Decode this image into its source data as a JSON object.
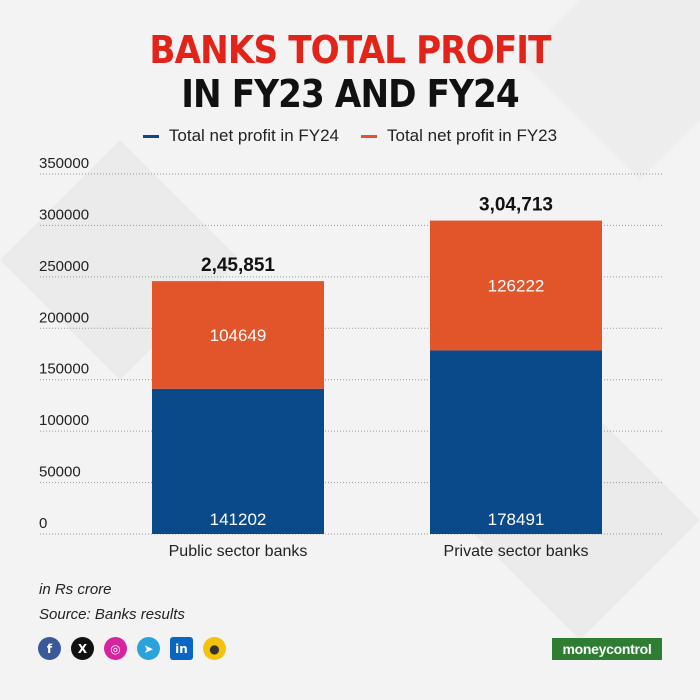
{
  "title_line1": "BANKS TOTAL PROFIT",
  "title_line2": "IN FY23 AND FY24",
  "legend": [
    {
      "label": "Total net profit in FY24",
      "color": "#0a4a8a"
    },
    {
      "label": "Total net profit in FY23",
      "color": "#e2542a"
    }
  ],
  "notes": {
    "unit": "in Rs crore",
    "source": "Source: Banks results"
  },
  "social_icons": [
    "facebook-icon",
    "x-icon",
    "instagram-icon",
    "telegram-icon",
    "linkedin-icon",
    "koo-icon"
  ],
  "brand": "moneycontrol",
  "chart_data": {
    "type": "bar",
    "stacked": true,
    "categories": [
      "Public sector banks",
      "Private sector banks"
    ],
    "series": [
      {
        "name": "Total net profit in FY24",
        "values": [
          141202,
          178491
        ],
        "color": "#0a4a8a"
      },
      {
        "name": "Total net profit in FY23",
        "values": [
          104649,
          126222
        ],
        "color": "#e2542a"
      }
    ],
    "totals_labels": [
      "2,45,851",
      "3,04,713"
    ],
    "ylim": [
      0,
      350000
    ],
    "yticks": [
      0,
      50000,
      100000,
      150000,
      200000,
      250000,
      300000,
      350000
    ],
    "grid": true,
    "legend_position": "top"
  }
}
